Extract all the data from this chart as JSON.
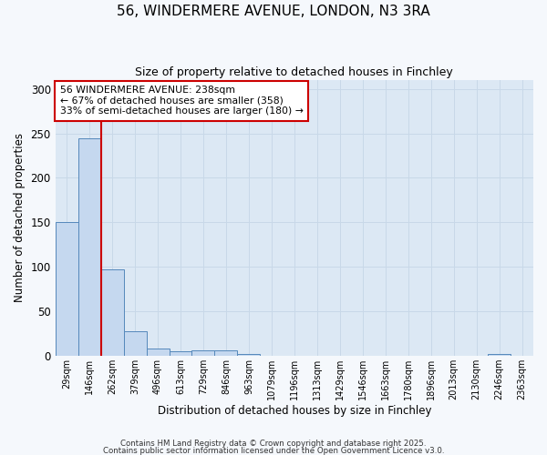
{
  "title_line1": "56, WINDERMERE AVENUE, LONDON, N3 3RA",
  "title_line2": "Size of property relative to detached houses in Finchley",
  "xlabel": "Distribution of detached houses by size in Finchley",
  "ylabel": "Number of detached properties",
  "bin_labels": [
    "29sqm",
    "146sqm",
    "262sqm",
    "379sqm",
    "496sqm",
    "613sqm",
    "729sqm",
    "846sqm",
    "963sqm",
    "1079sqm",
    "1196sqm",
    "1313sqm",
    "1429sqm",
    "1546sqm",
    "1663sqm",
    "1780sqm",
    "1896sqm",
    "2013sqm",
    "2130sqm",
    "2246sqm",
    "2363sqm"
  ],
  "bar_values": [
    150,
    244,
    97,
    27,
    8,
    5,
    6,
    6,
    2,
    0,
    0,
    0,
    0,
    0,
    0,
    0,
    0,
    0,
    0,
    2,
    0
  ],
  "bar_color": "#c5d8ef",
  "bar_edge_color": "#5588bb",
  "grid_color": "#c8d8e8",
  "bg_color": "#dce8f4",
  "annotation_text": "56 WINDERMERE AVENUE: 238sqm\n← 67% of detached houses are smaller (358)\n33% of semi-detached houses are larger (180) →",
  "annotation_box_color": "#ffffff",
  "annotation_border_color": "#cc0000",
  "footnote_line1": "Contains HM Land Registry data © Crown copyright and database right 2025.",
  "footnote_line2": "Contains public sector information licensed under the Open Government Licence v3.0.",
  "ylim": [
    0,
    310
  ],
  "yticks": [
    0,
    50,
    100,
    150,
    200,
    250,
    300
  ],
  "red_line_x": 1.5,
  "fig_bg": "#f5f8fc"
}
